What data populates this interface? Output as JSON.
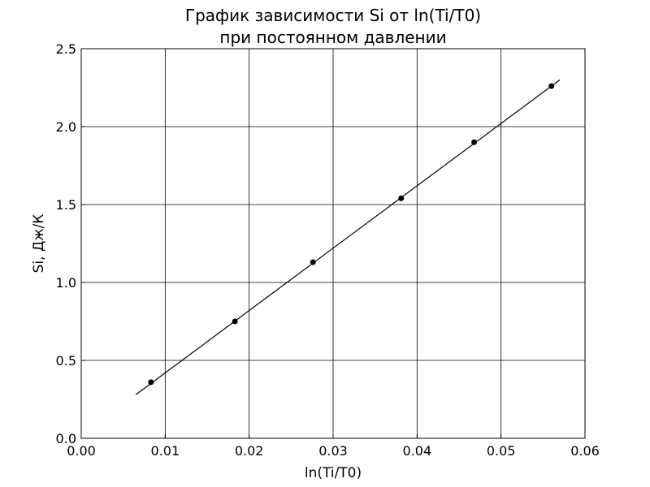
{
  "chart_data": {
    "type": "scatter",
    "title_lines": [
      "График зависимости Si от ln(Ti/T0)",
      "при постоянном давлении"
    ],
    "xlabel": "ln(Ti/T0)",
    "ylabel": "Si, Дж/К",
    "xlim": [
      0.0,
      0.06
    ],
    "ylim": [
      0.0,
      2.5
    ],
    "x_ticks": [
      "0.00",
      "0.01",
      "0.02",
      "0.03",
      "0.04",
      "0.05",
      "0.06"
    ],
    "y_ticks": [
      "0.0",
      "0.5",
      "1.0",
      "1.5",
      "2.0",
      "2.5"
    ],
    "grid": true,
    "points": [
      {
        "x": 0.0083,
        "y": 0.36
      },
      {
        "x": 0.0183,
        "y": 0.75
      },
      {
        "x": 0.0276,
        "y": 1.13
      },
      {
        "x": 0.0381,
        "y": 1.54
      },
      {
        "x": 0.0468,
        "y": 1.9
      },
      {
        "x": 0.056,
        "y": 2.26
      }
    ],
    "fit_line": {
      "x": [
        0.0065,
        0.057
      ],
      "y": [
        0.28,
        2.3
      ]
    },
    "colors": {
      "points": "#000000",
      "line": "#000000",
      "grid": "#000000"
    }
  }
}
